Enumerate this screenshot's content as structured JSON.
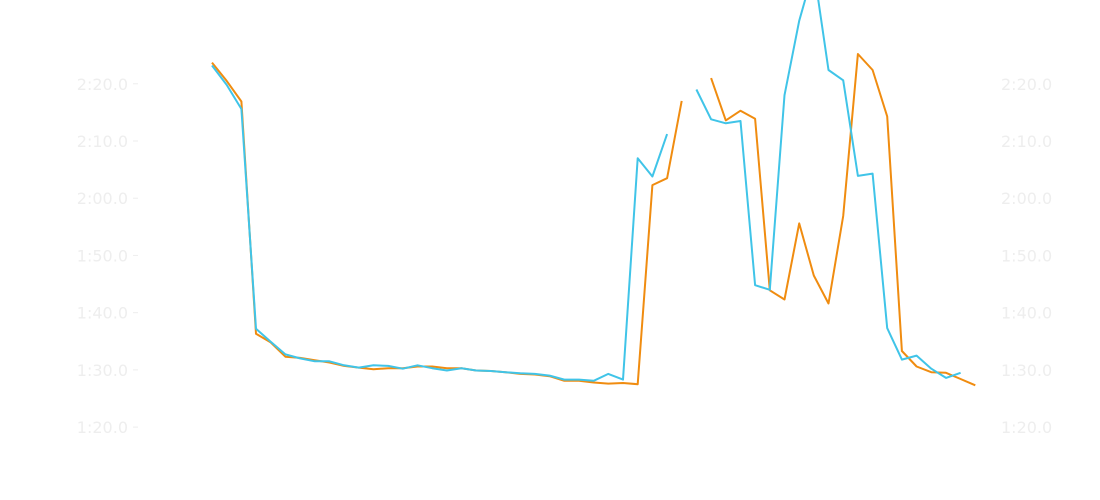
{
  "chart_data": {
    "type": "line",
    "title": "",
    "xlabel": "",
    "ylabel": "",
    "x": [
      1,
      2,
      3,
      4,
      5,
      6,
      7,
      8,
      9,
      10,
      11,
      12,
      13,
      14,
      15,
      16,
      17,
      18,
      19,
      20,
      21,
      22,
      23,
      24,
      25,
      26,
      27,
      28,
      29,
      30,
      31,
      32,
      33,
      34,
      35,
      36,
      37,
      38,
      39,
      40,
      41,
      42,
      43,
      44,
      45,
      46,
      47,
      48,
      49,
      50,
      51,
      52,
      53,
      54
    ],
    "y_axis": {
      "min_seconds": 76,
      "max_seconds": 148,
      "ticks_seconds": [
        80,
        90,
        100,
        110,
        120,
        130,
        140
      ],
      "tick_labels": [
        "1:20.0",
        "1:30.0",
        "1:40.0",
        "1:50.0",
        "2:00.0",
        "2:10.0",
        "2:20.0"
      ],
      "shown_on": [
        "left",
        "right"
      ]
    },
    "grid": false,
    "tick_color": "#eeeeee",
    "series": [
      {
        "color": "#f08c10",
        "values_seconds": [
          143.7,
          140.5,
          136.9,
          96.3,
          94.8,
          92.3,
          92.1,
          91.7,
          91.3,
          90.7,
          90.4,
          90.1,
          90.3,
          90.3,
          90.6,
          90.6,
          90.3,
          90.3,
          89.9,
          89.8,
          89.6,
          89.3,
          89.2,
          88.9,
          88.1,
          88.1,
          87.8,
          87.6,
          87.7,
          87.5,
          122.3,
          123.5,
          137.0,
          null,
          141.0,
          133.6,
          135.3,
          133.9,
          103.9,
          102.3,
          115.6,
          106.5,
          101.6,
          116.9,
          145.2,
          142.4,
          134.3,
          93.3,
          90.6,
          89.6,
          89.5,
          88.4,
          87.3,
          null
        ],
        "line_width": 2
      },
      {
        "color": "#40c4e8",
        "values_seconds": [
          143.2,
          139.8,
          135.6,
          97.2,
          94.9,
          92.7,
          92.0,
          91.5,
          91.5,
          90.8,
          90.4,
          90.8,
          90.7,
          90.2,
          90.8,
          90.3,
          89.9,
          90.3,
          89.9,
          89.8,
          89.6,
          89.4,
          89.3,
          89.0,
          88.3,
          88.3,
          88.1,
          89.3,
          88.3,
          127.0,
          123.8,
          131.2,
          null,
          139.0,
          133.8,
          133.1,
          133.5,
          104.8,
          104.0,
          138.0,
          151.0,
          160.0,
          142.4,
          140.6,
          123.9,
          124.3,
          97.3,
          91.8,
          92.5,
          90.2,
          88.6,
          89.5,
          null,
          null
        ],
        "line_width": 2
      }
    ]
  }
}
